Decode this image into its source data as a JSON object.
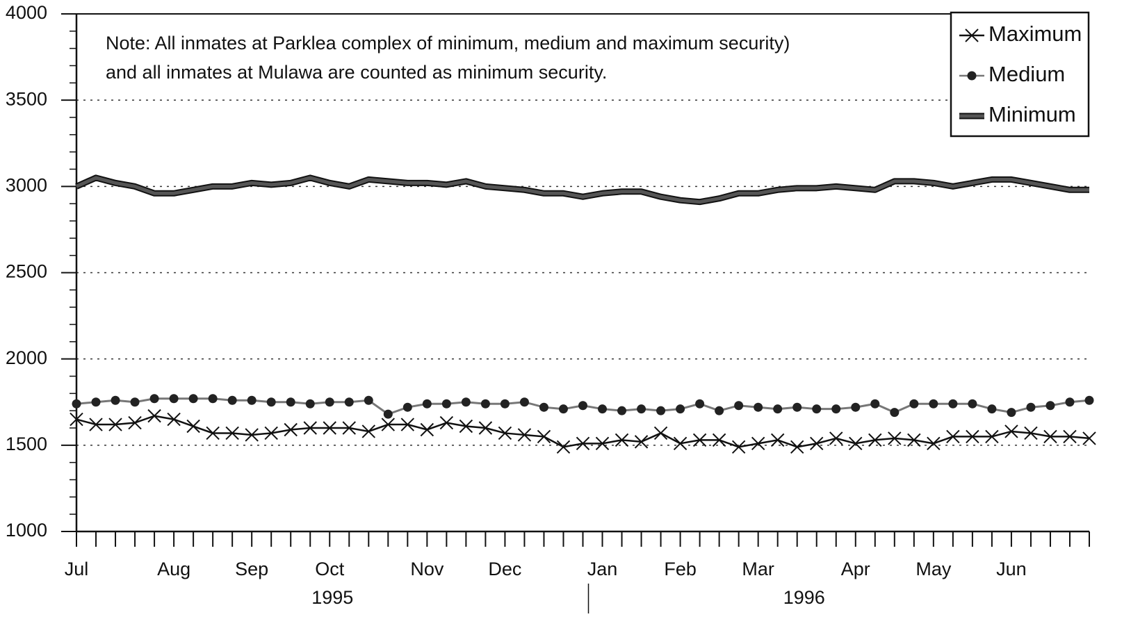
{
  "chart_data": {
    "type": "line",
    "annotation": [
      "Note: All inmates at Parklea complex of minimum, medium  and maximum security)",
      " and all inmates at Mulawa are counted as minimum security."
    ],
    "categories": [
      "Jul",
      null,
      null,
      null,
      null,
      "Aug",
      null,
      null,
      null,
      "Sep",
      null,
      null,
      null,
      "Oct",
      null,
      null,
      null,
      null,
      "Nov",
      null,
      null,
      null,
      "Dec",
      null,
      null,
      null,
      null,
      "Jan",
      null,
      null,
      null,
      "Feb",
      null,
      null,
      null,
      "Mar",
      null,
      null,
      null,
      null,
      "Apr",
      null,
      null,
      null,
      "May",
      null,
      null,
      null,
      "Jun",
      null,
      null,
      null,
      null
    ],
    "year_labels": [
      "1995",
      "1996"
    ],
    "year_split": 27,
    "ylim": [
      1000,
      4000
    ],
    "yticks": [
      1000,
      1500,
      2000,
      2500,
      3000,
      3500,
      4000
    ],
    "yticks_minor": [
      1100,
      1200,
      1300,
      1400,
      1600,
      1700,
      1800,
      1900,
      2100,
      2200,
      2300,
      2400,
      2600,
      2700,
      2800,
      2900,
      3100,
      3200,
      3300,
      3400,
      3600,
      3700,
      3800,
      3900
    ],
    "grid": true,
    "legend": "top-right",
    "series": [
      {
        "name": "Maximum",
        "color": "#111111",
        "marker": "x",
        "values": [
          1650,
          1620,
          1620,
          1630,
          1670,
          1650,
          1610,
          1570,
          1570,
          1560,
          1570,
          1590,
          1600,
          1600,
          1600,
          1580,
          1620,
          1620,
          1590,
          1630,
          1610,
          1600,
          1570,
          1560,
          1550,
          1490,
          1510,
          1510,
          1530,
          1520,
          1570,
          1510,
          1530,
          1530,
          1490,
          1510,
          1530,
          1490,
          1510,
          1540,
          1510,
          1530,
          1540,
          1530,
          1510,
          1550,
          1550,
          1550,
          1580,
          1570,
          1550,
          1550,
          1540
        ]
      },
      {
        "name": "Medium",
        "color": "#222222",
        "marker": "dot",
        "values": [
          1740,
          1750,
          1760,
          1750,
          1770,
          1770,
          1770,
          1770,
          1760,
          1760,
          1750,
          1750,
          1740,
          1750,
          1750,
          1760,
          1680,
          1720,
          1740,
          1740,
          1750,
          1740,
          1740,
          1750,
          1720,
          1710,
          1730,
          1710,
          1700,
          1710,
          1700,
          1710,
          1740,
          1700,
          1730,
          1720,
          1710,
          1720,
          1710,
          1710,
          1720,
          1740,
          1690,
          1740,
          1740,
          1740,
          1740,
          1710,
          1690,
          1720,
          1730,
          1750,
          1760
        ]
      },
      {
        "name": "Minimum",
        "color": "#555555",
        "marker": "thick",
        "values": [
          3000,
          3050,
          3020,
          3000,
          2960,
          2960,
          2980,
          3000,
          3000,
          3020,
          3010,
          3020,
          3050,
          3020,
          3000,
          3040,
          3030,
          3020,
          3020,
          3010,
          3030,
          3000,
          2990,
          2980,
          2960,
          2960,
          2940,
          2960,
          2970,
          2970,
          2940,
          2920,
          2910,
          2930,
          2960,
          2960,
          2980,
          2990,
          2990,
          3000,
          2990,
          2980,
          3030,
          3030,
          3020,
          3000,
          3020,
          3040,
          3040,
          3020,
          3000,
          2980,
          2980
        ]
      }
    ]
  }
}
